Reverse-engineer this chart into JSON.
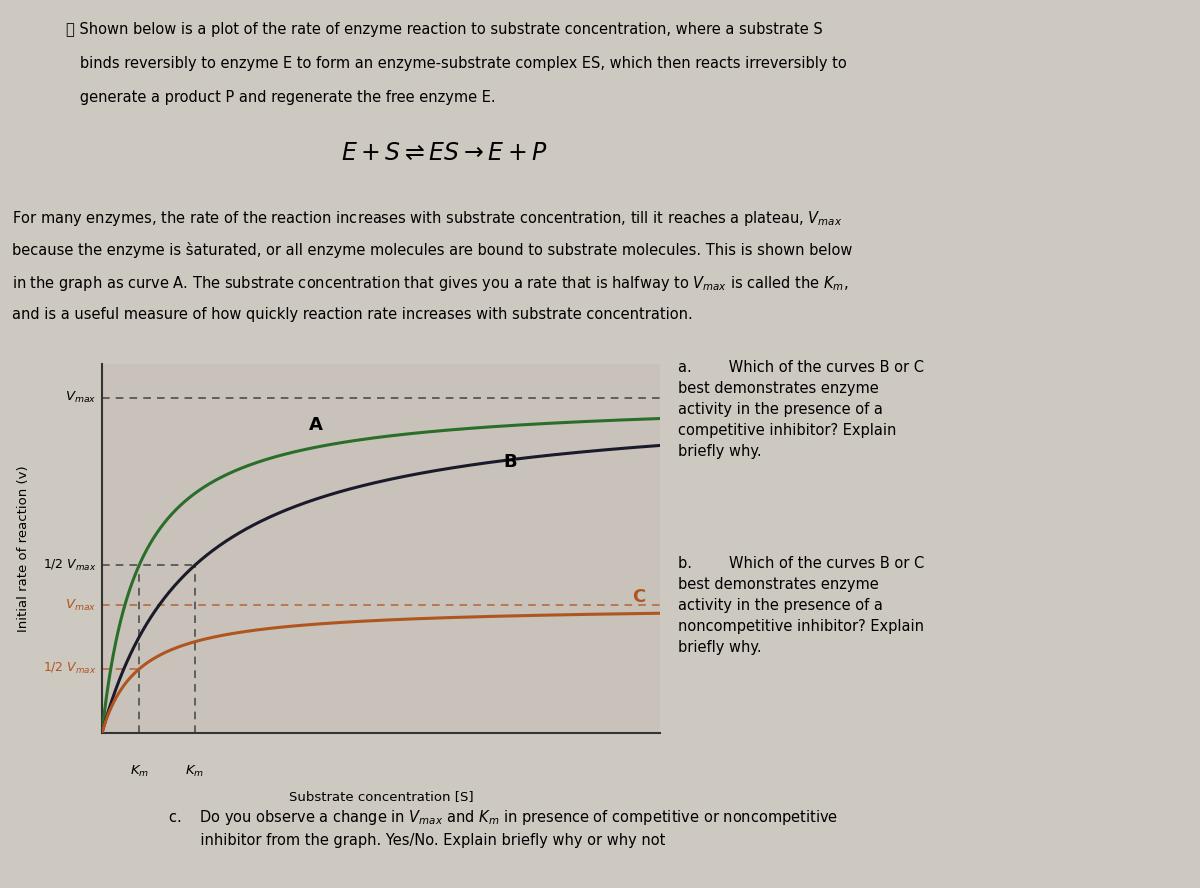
{
  "background_color": "#cdc8c0",
  "graph_bg": "#c8c2ba",
  "vmax_A": 1.0,
  "vmax_C": 0.38,
  "km_A": 0.12,
  "km_B": 0.3,
  "km_C": 0.12,
  "x_max": 1.8,
  "curve_A_color": "#2a6e2a",
  "curve_B_color": "#1a1a2a",
  "curve_C_color": "#b05520",
  "dashed_color_dark": "#444444",
  "dashed_color_C": "#b05520",
  "ylabel": "Initial rate of reaction (v)",
  "xlabel": "Substrate concentration [S]",
  "intro_line1": "Ⲩ Shown below is a plot of the rate of enzyme reaction to substrate concentration, where a substrate S",
  "intro_line2": "   binds reversibly to enzyme E to form an enzyme-substrate complex ES, which then reacts irreversibly to",
  "intro_line3": "   generate a product P and regenerate the free enzyme E.",
  "para_line1": "For many enzymes, the rate of the reaction increases with substrate concentration, till it reaches a plateau, V",
  "para_line2": "because the enzyme is s̀aturated, or all enzyme molecules are bound to substrate molecules. This is shown below",
  "para_line3": "in the graph as curve A. The substrate concentration that gives you a rate that is halfway to V",
  "para_line4": "and is a useful measure of how quickly reaction rate increases with substrate concentration.",
  "q_a_line1": "a.        Which of the curves B or C",
  "q_a_rest": "best demonstrates enzyme\nactivity in the presence of a\ncompetitive inhibitor? Explain\nbriefly why.",
  "q_b_line1": "b.        Which of the curves B or C",
  "q_b_rest": "best demonstrates enzyme\nactivity in the presence of a\nnoncompetitive inhibitor? Explain\nbriefly why.",
  "q_c": "c.    Do you observe a change in V",
  "q_c2": " and K",
  "q_c3": " in presence of competitive or noncompetitive",
  "q_c_line2": "      inhibitor from the graph. Yes/No. Explain briefly why or why not"
}
